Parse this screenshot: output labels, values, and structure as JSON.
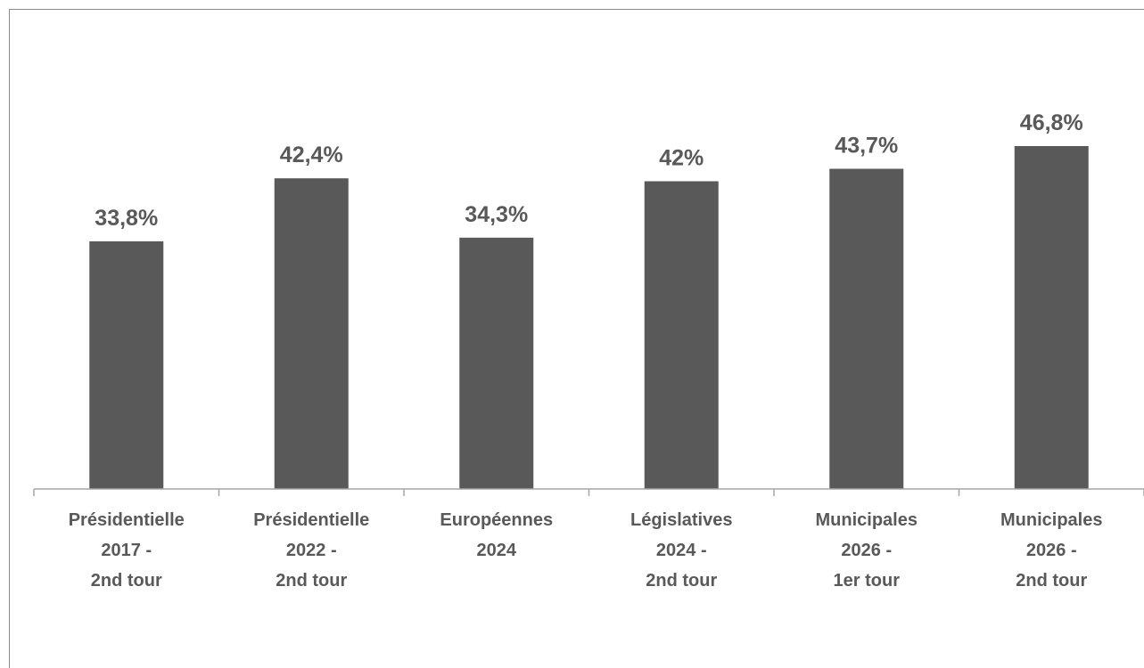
{
  "chart_data": {
    "type": "bar",
    "categories": [
      [
        "Présidentielle",
        "2017 -",
        "2nd tour"
      ],
      [
        "Présidentielle",
        "2022 -",
        "2nd tour"
      ],
      [
        "Européennes",
        "2024"
      ],
      [
        "Législatives",
        "2024 -",
        "2nd tour"
      ],
      [
        "Municipales",
        "2026 -",
        "1er tour"
      ],
      [
        "Municipales",
        "2026 -",
        "2nd tour"
      ]
    ],
    "values": [
      33.8,
      42.4,
      34.3,
      42,
      43.7,
      46.8
    ],
    "data_labels": [
      "33,8%",
      "42,4%",
      "34,3%",
      "42%",
      "43,7%",
      "46,8%"
    ],
    "title": "",
    "xlabel": "",
    "ylabel": "",
    "ylim": [
      0,
      46.8
    ],
    "grid": false,
    "bar_color": "#595959",
    "axis_color": "#a6a6a6"
  }
}
